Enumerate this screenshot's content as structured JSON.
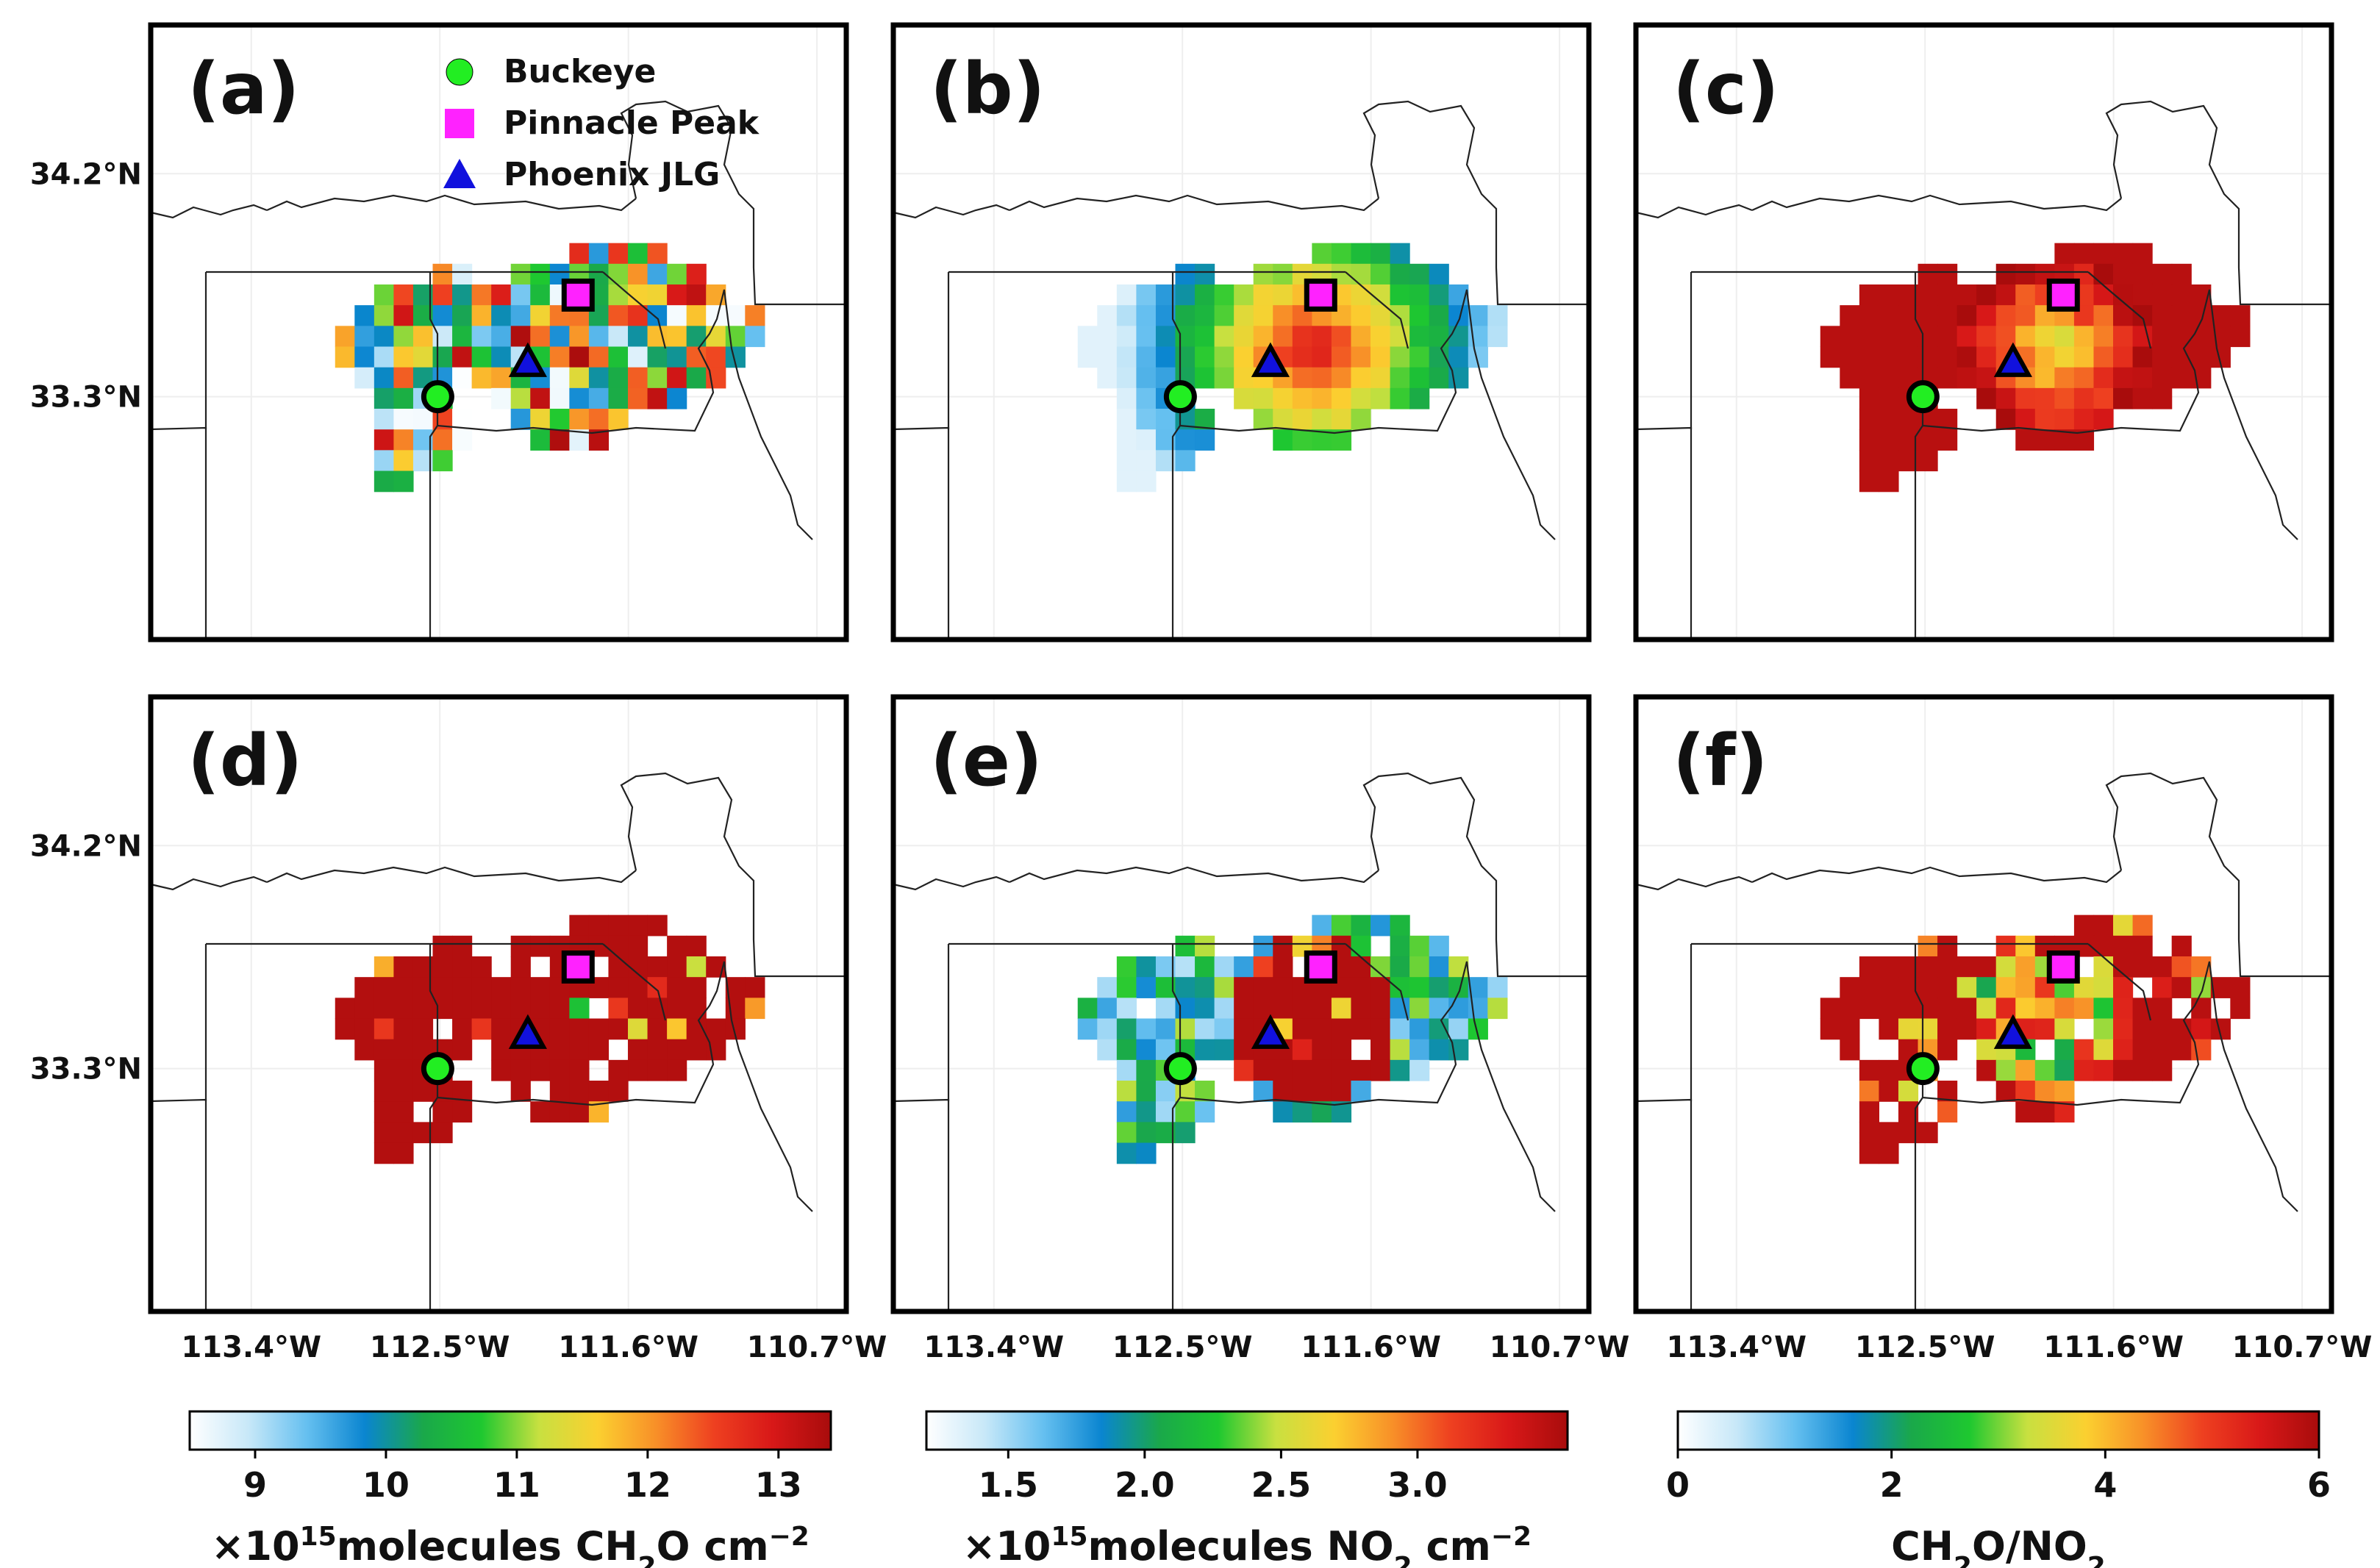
{
  "chart_data": {
    "type": "heatmap",
    "grid": {
      "cols": 22,
      "rows": 14,
      "lon_range": [
        -113.0,
        -110.95
      ],
      "lat_range": [
        32.75,
        33.92
      ]
    },
    "axes": {
      "x_ticks": [
        "113.4°W",
        "112.5°W",
        "111.6°W",
        "110.7°W"
      ],
      "x_tick_values": [
        -113.4,
        -112.5,
        -111.6,
        -110.7
      ],
      "y_ticks": [
        "34.2°N",
        "33.3°N"
      ],
      "y_tick_values": [
        34.2,
        33.3
      ],
      "xlim": [
        -113.88,
        -110.56
      ],
      "ylim": [
        32.32,
        34.8
      ]
    },
    "legend": {
      "position": "top-right of panel (a)",
      "entries": [
        {
          "label": "Buckeye",
          "marker": "circle",
          "color": "#22ee22"
        },
        {
          "label": "Pinnacle Peak",
          "marker": "square",
          "color": "#ff22ff"
        },
        {
          "label": "Phoenix JLG",
          "marker": "triangle",
          "color": "#1111dd"
        }
      ]
    },
    "sites": [
      {
        "name": "Buckeye",
        "lon": -112.51,
        "lat": 33.3,
        "marker": "circle",
        "color": "#22ee22"
      },
      {
        "name": "Pinnacle Peak",
        "lon": -111.84,
        "lat": 33.71,
        "marker": "square",
        "color": "#ff22ff"
      },
      {
        "name": "Phoenix JLG",
        "lon": -112.08,
        "lat": 33.43,
        "marker": "triangle",
        "color": "#1111dd"
      }
    ],
    "panels": [
      {
        "id": "a",
        "label": "(a)",
        "variable": "CH2O",
        "pattern": "noisy",
        "show_legend": true,
        "show_ylabels": true
      },
      {
        "id": "b",
        "label": "(b)",
        "variable": "NO2",
        "pattern": "plume",
        "show_legend": false,
        "show_ylabels": false
      },
      {
        "id": "c",
        "label": "(c)",
        "variable": "CH2O/NO2",
        "pattern": "ratio",
        "show_legend": false,
        "show_ylabels": false
      },
      {
        "id": "d",
        "label": "(d)",
        "variable": "CH2O",
        "pattern": "saturated",
        "show_legend": false,
        "show_ylabels": true
      },
      {
        "id": "e",
        "label": "(e)",
        "variable": "NO2",
        "pattern": "high_no2",
        "show_legend": false,
        "show_ylabels": false
      },
      {
        "id": "f",
        "label": "(f)",
        "variable": "CH2O/NO2",
        "pattern": "ratio_noisy",
        "show_legend": false,
        "show_ylabels": false
      }
    ],
    "colorbars": [
      {
        "variable": "CH2O",
        "range": [
          8.5,
          13.4
        ],
        "ticks": [
          9,
          10,
          11,
          12,
          13
        ],
        "tick_labels": [
          "9",
          "10",
          "11",
          "12",
          "13"
        ],
        "label_prefix": "×10",
        "label_exp": "15",
        "label_main": "molecules CH",
        "label_sub": "2",
        "label_tail": "O cm",
        "label_tail_exp": "−2"
      },
      {
        "variable": "NO2",
        "range": [
          1.2,
          3.55
        ],
        "ticks": [
          1.5,
          2.0,
          2.5,
          3.0
        ],
        "tick_labels": [
          "1.5",
          "2.0",
          "2.5",
          "3.0"
        ],
        "label_prefix": "×10",
        "label_exp": "15",
        "label_main": "molecules NO",
        "label_sub": "2",
        "label_tail": " cm",
        "label_tail_exp": "−2"
      },
      {
        "variable": "CH2O/NO2",
        "range": [
          0,
          6
        ],
        "ticks": [
          0,
          2,
          4,
          6
        ],
        "tick_labels": [
          "0",
          "2",
          "4",
          "6"
        ],
        "label_prefix": "",
        "label_exp": "",
        "label_main": "CH",
        "label_sub": "2",
        "label_tail": "O/NO",
        "label_tail_sub": "2",
        "label_tail_exp": ""
      }
    ],
    "colormap": [
      "#ffffff",
      "#c8e8f8",
      "#66c0f0",
      "#0a85d0",
      "#1aa84a",
      "#1ec830",
      "#c8e040",
      "#fbd030",
      "#f89028",
      "#ee4020",
      "#d81818",
      "#a80c0c"
    ]
  }
}
